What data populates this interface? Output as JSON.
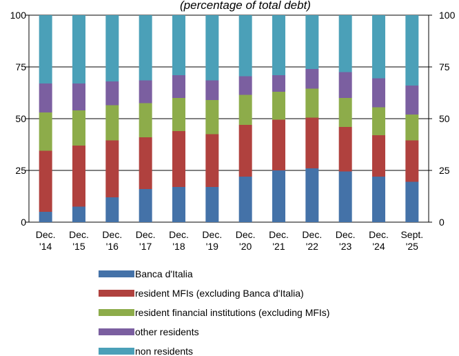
{
  "chart_data": {
    "type": "bar",
    "stacked": true,
    "title": "(percentage of total debt)",
    "ylim": [
      0,
      100
    ],
    "yticks": [
      0,
      25,
      50,
      75,
      100
    ],
    "right_axis": true,
    "grid": true,
    "legend_position": "bottom",
    "categories": [
      [
        "Dec.",
        "'14"
      ],
      [
        "Dec.",
        "'15"
      ],
      [
        "Dec.",
        "'16"
      ],
      [
        "Dec.",
        "'17"
      ],
      [
        "Dec.",
        "'18"
      ],
      [
        "Dec.",
        "'19"
      ],
      [
        "Dec.",
        "'20"
      ],
      [
        "Dec.",
        "'21"
      ],
      [
        "Dec.",
        "'22"
      ],
      [
        "Dec.",
        "'23"
      ],
      [
        "Dec.",
        "'24"
      ],
      [
        "Sept.",
        "'25"
      ]
    ],
    "series": [
      {
        "name": "Banca d'Italia",
        "color": "#4472a8",
        "values": [
          5,
          7.5,
          12,
          16,
          17,
          17,
          22,
          25,
          26,
          24.5,
          22,
          19.5
        ]
      },
      {
        "name": "resident MFIs (excluding Banca d'Italia)",
        "color": "#b0413e",
        "values": [
          29.5,
          29.5,
          27.5,
          25,
          27,
          25.5,
          25,
          24.5,
          24.5,
          21.5,
          20,
          20
        ]
      },
      {
        "name": "resident financial institutions (excluding MFIs)",
        "color": "#8dac4a",
        "values": [
          18.5,
          17,
          17,
          16.5,
          16,
          16.5,
          14.5,
          13.5,
          14,
          14,
          13.5,
          12.5
        ]
      },
      {
        "name": "other residents",
        "color": "#7b5fa0",
        "values": [
          14,
          13,
          11.5,
          11,
          11,
          9.5,
          9,
          8,
          9.5,
          12.5,
          14,
          14
        ]
      },
      {
        "name": "non residents",
        "color": "#4ba0b8",
        "values": [
          33,
          33,
          32,
          31.5,
          29,
          31.5,
          29.5,
          29,
          26,
          27.5,
          30.5,
          34
        ]
      }
    ]
  }
}
